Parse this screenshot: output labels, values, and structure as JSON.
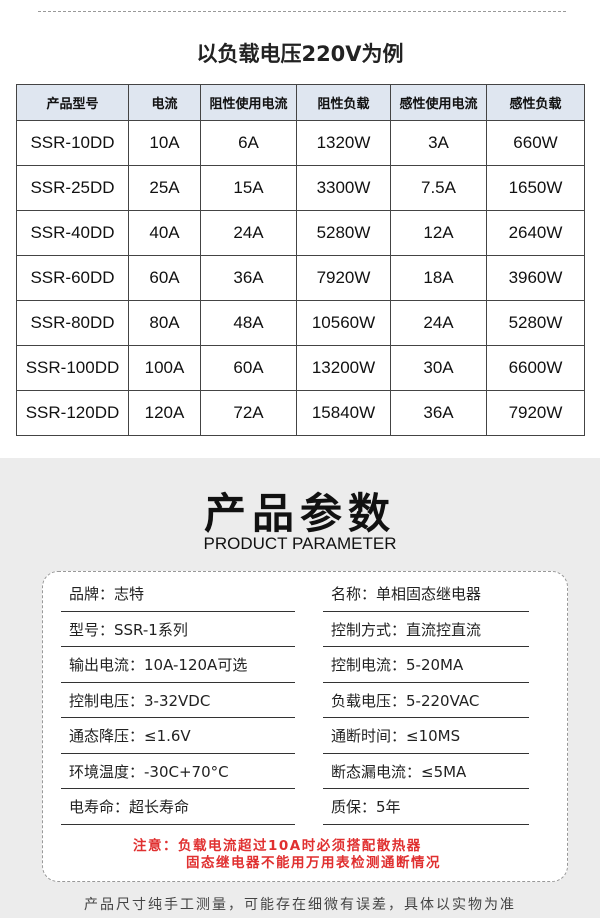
{
  "top": {
    "title": "以负载电压220V为例"
  },
  "table": {
    "headers": [
      "产品型号",
      "电流",
      "阻性使用电流",
      "阻性负载",
      "感性使用电流",
      "感性负载"
    ],
    "rows": [
      [
        "SSR-10DD",
        "10A",
        "6A",
        "1320W",
        "3A",
        "660W"
      ],
      [
        "SSR-25DD",
        "25A",
        "15A",
        "3300W",
        "7.5A",
        "1650W"
      ],
      [
        "SSR-40DD",
        "40A",
        "24A",
        "5280W",
        "12A",
        "2640W"
      ],
      [
        "SSR-60DD",
        "60A",
        "36A",
        "7920W",
        "18A",
        "3960W"
      ],
      [
        "SSR-80DD",
        "80A",
        "48A",
        "10560W",
        "24A",
        "5280W"
      ],
      [
        "SSR-100DD",
        "100A",
        "60A",
        "13200W",
        "30A",
        "6600W"
      ],
      [
        "SSR-120DD",
        "120A",
        "72A",
        "15840W",
        "36A",
        "7920W"
      ]
    ]
  },
  "params": {
    "title": "产品参数",
    "subtitle": "PRODUCT PARAMETER",
    "left": [
      "品牌：志特",
      "型号：SSR-1系列",
      "输出电流：10A-120A可选",
      "控制电压：3-32VDC",
      "通态降压：≤1.6V",
      "环境温度：-30C+70°C",
      "电寿命：超长寿命"
    ],
    "right": [
      "名称：单相固态继电器",
      "控制方式：直流控直流",
      "控制电流：5-20MA",
      "负载电压：5-220VAC",
      "通断时间：≤10MS",
      "断态漏电流：≤5MA",
      "质保：5年"
    ],
    "note1": "注意：负载电流超过10A时必须搭配散热器",
    "note2": "固态继电器不能用万用表检测通断情况",
    "note_color": "#e03030"
  },
  "footer": "产品尺寸纯手工测量，可能存在细微有误差，具体以实物为准"
}
